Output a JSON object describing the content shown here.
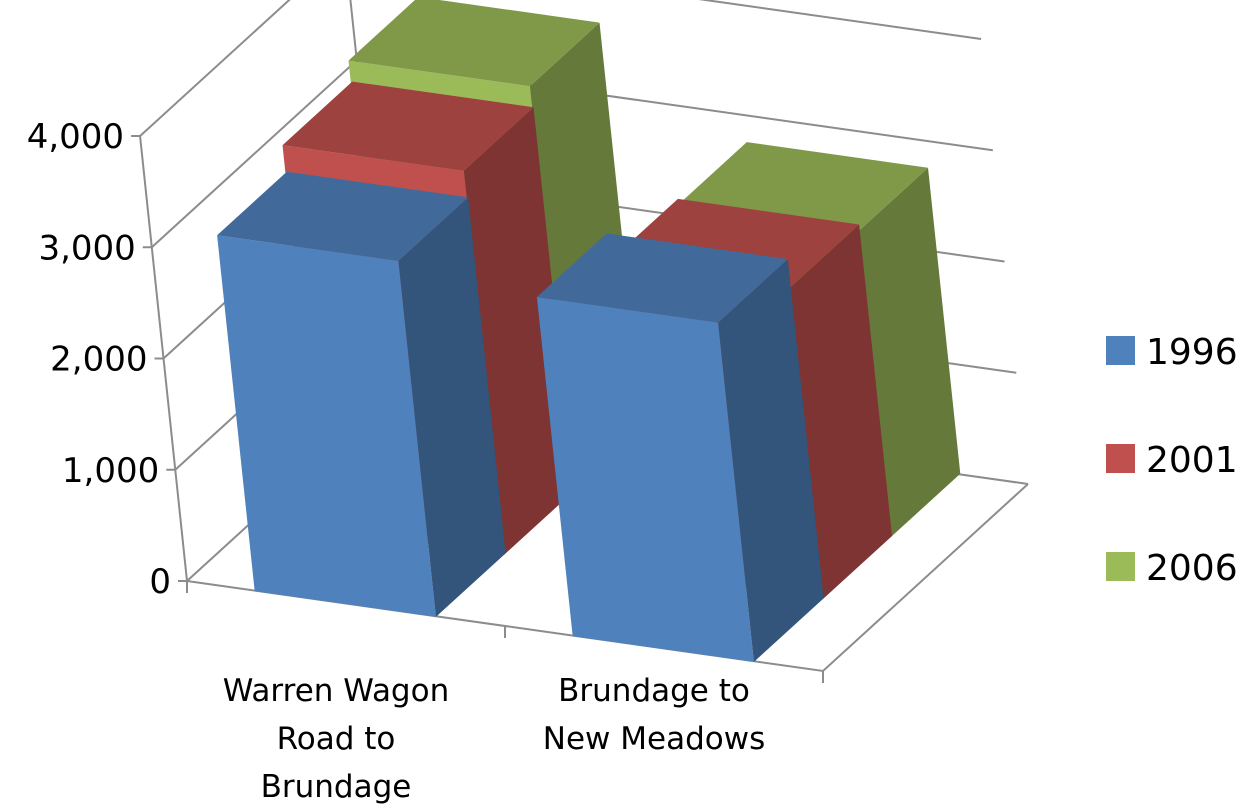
{
  "chart_data": {
    "type": "bar",
    "variant": "3d-column",
    "title": "",
    "xlabel": "",
    "ylabel": "",
    "categories": [
      [
        "Warren Wagon",
        "Road to",
        "Brundage"
      ],
      [
        "Brundage to",
        "New Meadows"
      ]
    ],
    "series": [
      {
        "name": "1996",
        "color": "#4f81bd",
        "values": [
          3200,
          3050
        ]
      },
      {
        "name": "2001",
        "color": "#c0504d",
        "values": [
          3450,
          2800
        ]
      },
      {
        "name": "2006",
        "color": "#9bbb59",
        "values": [
          3650,
          2750
        ]
      }
    ],
    "ylim": [
      0,
      4000
    ],
    "yticks": [
      "0",
      "1,000",
      "2,000",
      "3,000",
      "4,000"
    ],
    "grid": true,
    "legend": "right"
  }
}
